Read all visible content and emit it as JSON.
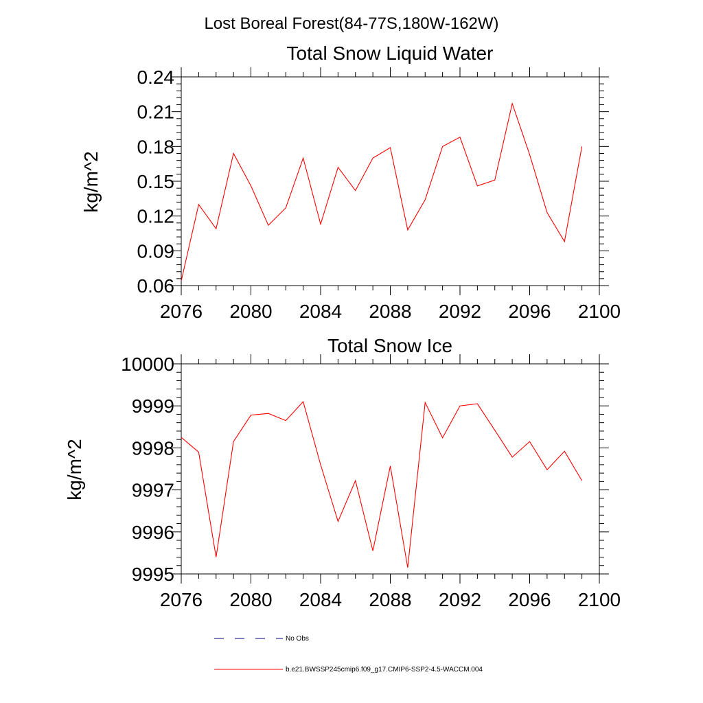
{
  "figure": {
    "title": "Lost Boreal Forest(84-77S,180W-162W)"
  },
  "legend": {
    "items": [
      {
        "label": "No Obs",
        "color": "#000080",
        "style": "dashed"
      },
      {
        "label": "b.e21.BWSSP245cmip6.f09_g17.CMIP6-SSP2-4.5-WACCM.004",
        "color": "#ff0000",
        "style": "solid"
      }
    ]
  },
  "chart_data": [
    {
      "type": "line",
      "title": "Total Snow Liquid Water",
      "xlabel": "",
      "ylabel": "kg/m^2",
      "xlim": [
        2076,
        2100
      ],
      "ylim": [
        0.06,
        0.24
      ],
      "x_ticks": [
        2076,
        2080,
        2084,
        2088,
        2092,
        2096,
        2100
      ],
      "x_tick_labels": [
        "2076",
        "2080",
        "2084",
        "2088",
        "2092",
        "2096",
        "2100"
      ],
      "y_ticks": [
        0.06,
        0.09,
        0.12,
        0.15,
        0.18,
        0.21,
        0.24
      ],
      "y_tick_labels": [
        "0.06",
        "0.09",
        "0.12",
        "0.15",
        "0.18",
        "0.21",
        "0.24"
      ],
      "grid": false,
      "series": [
        {
          "name": "b.e21.BWSSP245cmip6.f09_g17.CMIP6-SSP2-4.5-WACCM.004",
          "color": "#ff0000",
          "x": [
            2076,
            2077,
            2078,
            2079,
            2080,
            2081,
            2082,
            2083,
            2084,
            2085,
            2086,
            2087,
            2088,
            2089,
            2090,
            2091,
            2092,
            2093,
            2094,
            2095,
            2096,
            2097,
            2098,
            2099
          ],
          "values": [
            0.064,
            0.13,
            0.109,
            0.174,
            0.146,
            0.112,
            0.127,
            0.17,
            0.113,
            0.162,
            0.142,
            0.17,
            0.179,
            0.108,
            0.134,
            0.18,
            0.188,
            0.146,
            0.151,
            0.217,
            0.173,
            0.123,
            0.098,
            0.18
          ]
        }
      ]
    },
    {
      "type": "line",
      "title": "Total Snow Ice",
      "xlabel": "",
      "ylabel": "kg/m^2",
      "xlim": [
        2076,
        2100
      ],
      "ylim": [
        9995,
        10000
      ],
      "x_ticks": [
        2076,
        2080,
        2084,
        2088,
        2092,
        2096,
        2100
      ],
      "x_tick_labels": [
        "2076",
        "2080",
        "2084",
        "2088",
        "2092",
        "2096",
        "2100"
      ],
      "y_ticks": [
        9995,
        9996,
        9997,
        9998,
        9999,
        10000
      ],
      "y_tick_labels": [
        "9995",
        "9996",
        "9997",
        "9998",
        "9999",
        "10000"
      ],
      "grid": false,
      "series": [
        {
          "name": "b.e21.BWSSP245cmip6.f09_g17.CMIP6-SSP2-4.5-WACCM.004",
          "color": "#ff0000",
          "x": [
            2076,
            2077,
            2078,
            2079,
            2080,
            2081,
            2082,
            2083,
            2084,
            2085,
            2086,
            2087,
            2088,
            2089,
            2090,
            2091,
            2092,
            2093,
            2094,
            2095,
            2096,
            2097,
            2098,
            2099
          ],
          "values": [
            9998.25,
            9997.9,
            9995.4,
            9998.15,
            9998.78,
            9998.82,
            9998.65,
            9999.1,
            9997.6,
            9996.25,
            9997.22,
            9995.55,
            9997.57,
            9995.15,
            9999.08,
            9998.24,
            9999.0,
            9999.05,
            9998.42,
            9997.78,
            9998.15,
            9997.48,
            9997.92,
            9997.22
          ]
        }
      ]
    }
  ]
}
